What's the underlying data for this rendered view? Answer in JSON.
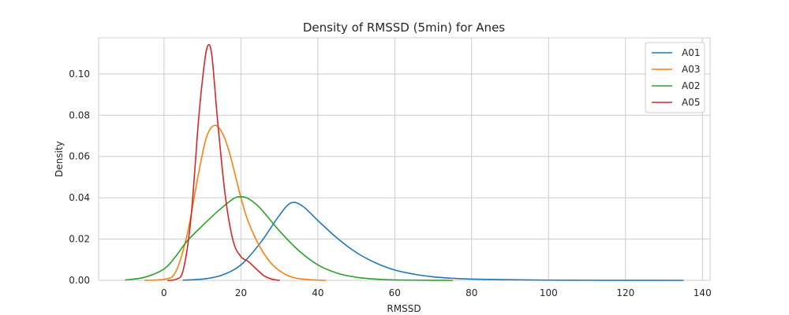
{
  "chart_data": {
    "type": "line",
    "title": "Density of RMSSD (5min) for Anes",
    "xlabel": "RMSSD",
    "ylabel": "Density",
    "xlim": [
      -17,
      142
    ],
    "ylim": [
      0,
      0.1175
    ],
    "xticks": [
      0,
      20,
      40,
      60,
      80,
      100,
      120,
      140
    ],
    "xtick_labels": [
      "0",
      "20",
      "40",
      "60",
      "80",
      "100",
      "120",
      "140"
    ],
    "yticks": [
      0,
      0.02,
      0.04,
      0.06,
      0.08,
      0.1
    ],
    "ytick_labels": [
      "0.00",
      "0.02",
      "0.04",
      "0.06",
      "0.08",
      "0.10"
    ],
    "grid": true,
    "legend_position": "upper right",
    "series": [
      {
        "name": "A01",
        "color": "#1f77b4",
        "x": [
          5,
          10,
          15,
          20,
          25,
          30,
          33,
          36,
          40,
          45,
          50,
          55,
          60,
          65,
          70,
          75,
          80,
          90,
          100,
          110,
          120,
          135
        ],
        "y": [
          0.0001,
          0.0006,
          0.0025,
          0.0075,
          0.018,
          0.0315,
          0.0375,
          0.036,
          0.029,
          0.0205,
          0.0135,
          0.0085,
          0.005,
          0.003,
          0.0017,
          0.001,
          0.0006,
          0.0003,
          0.0001,
          5e-05,
          2e-05,
          0.0
        ]
      },
      {
        "name": "A03",
        "color": "#ff7f0e",
        "x": [
          -5,
          0,
          3,
          6,
          9,
          11,
          13,
          15,
          17,
          20,
          22,
          25,
          28,
          31,
          34,
          38,
          42
        ],
        "y": [
          0.0,
          0.0005,
          0.004,
          0.022,
          0.052,
          0.069,
          0.075,
          0.072,
          0.062,
          0.04,
          0.028,
          0.016,
          0.008,
          0.0035,
          0.0012,
          0.0003,
          0.0
        ]
      },
      {
        "name": "A02",
        "color": "#2ca02c",
        "x": [
          -10,
          -5,
          0,
          3,
          6,
          10,
          14,
          18,
          20,
          22,
          25,
          30,
          35,
          40,
          45,
          50,
          55,
          60,
          65,
          70,
          75
        ],
        "y": [
          0.0002,
          0.0015,
          0.0055,
          0.0115,
          0.019,
          0.0265,
          0.0335,
          0.0395,
          0.0405,
          0.0395,
          0.035,
          0.024,
          0.0145,
          0.0075,
          0.0035,
          0.0015,
          0.0006,
          0.0002,
          0.0001,
          3e-05,
          0.0
        ]
      },
      {
        "name": "A05",
        "color": "#d62728",
        "x": [
          1,
          3,
          5,
          7,
          9,
          10.5,
          11.5,
          12.5,
          14,
          16,
          18,
          20,
          22,
          24,
          26,
          28,
          30
        ],
        "y": [
          0.0,
          0.0004,
          0.005,
          0.03,
          0.078,
          0.105,
          0.114,
          0.108,
          0.076,
          0.04,
          0.019,
          0.0115,
          0.009,
          0.0055,
          0.0022,
          0.0006,
          0.0
        ]
      }
    ]
  }
}
